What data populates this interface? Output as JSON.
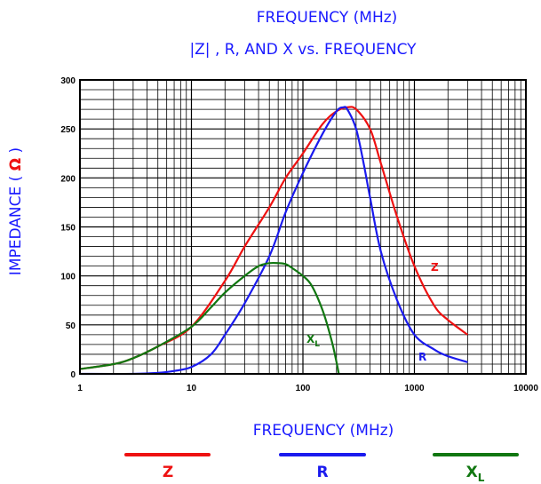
{
  "chart_data": {
    "type": "line",
    "title": "FREQUENCY (MHz)",
    "subtitle": "|Z| , R, AND X vs. FREQUENCY",
    "xlabel": "FREQUENCY (MHz)",
    "ylabel": "IMPEDANCE (",
    "ylabel_unit": "Ω",
    "x_scale": "log",
    "xlim": [
      1,
      10000
    ],
    "ylim": [
      0,
      300
    ],
    "grid": true,
    "legend_position": "bottom",
    "x_ticks": [
      "1",
      "10",
      "100",
      "1000",
      "10000"
    ],
    "y_ticks": [
      "0",
      "50",
      "100",
      "150",
      "200",
      "250",
      "300"
    ],
    "series": [
      {
        "name": "Z",
        "color": "#ee1111",
        "x": [
          1,
          2,
          3,
          5,
          10,
          20,
          30,
          50,
          70,
          100,
          150,
          200,
          250,
          300,
          400,
          500,
          700,
          1000,
          1500,
          2000,
          3000
        ],
        "y": [
          5,
          10,
          16,
          28,
          48,
          95,
          130,
          170,
          200,
          225,
          255,
          268,
          272,
          270,
          250,
          215,
          160,
          110,
          70,
          55,
          40
        ]
      },
      {
        "name": "R",
        "color": "#1a1aee",
        "x": [
          1,
          3,
          5,
          7,
          10,
          15,
          20,
          30,
          50,
          70,
          100,
          150,
          200,
          230,
          250,
          300,
          350,
          400,
          500,
          700,
          1000,
          1500,
          2000,
          3000
        ],
        "y": [
          0,
          0,
          1,
          3,
          7,
          20,
          40,
          72,
          120,
          165,
          205,
          245,
          268,
          272,
          270,
          250,
          215,
          180,
          125,
          75,
          40,
          25,
          18,
          12
        ]
      },
      {
        "name": "X",
        "sub": "L",
        "color": "#117711",
        "x": [
          1,
          2,
          3,
          5,
          10,
          15,
          20,
          30,
          40,
          50,
          60,
          70,
          80,
          100,
          120,
          150,
          180,
          200,
          210
        ],
        "y": [
          5,
          10,
          16,
          28,
          48,
          68,
          83,
          100,
          110,
          113,
          113,
          112,
          108,
          100,
          90,
          65,
          35,
          12,
          0
        ]
      }
    ]
  }
}
